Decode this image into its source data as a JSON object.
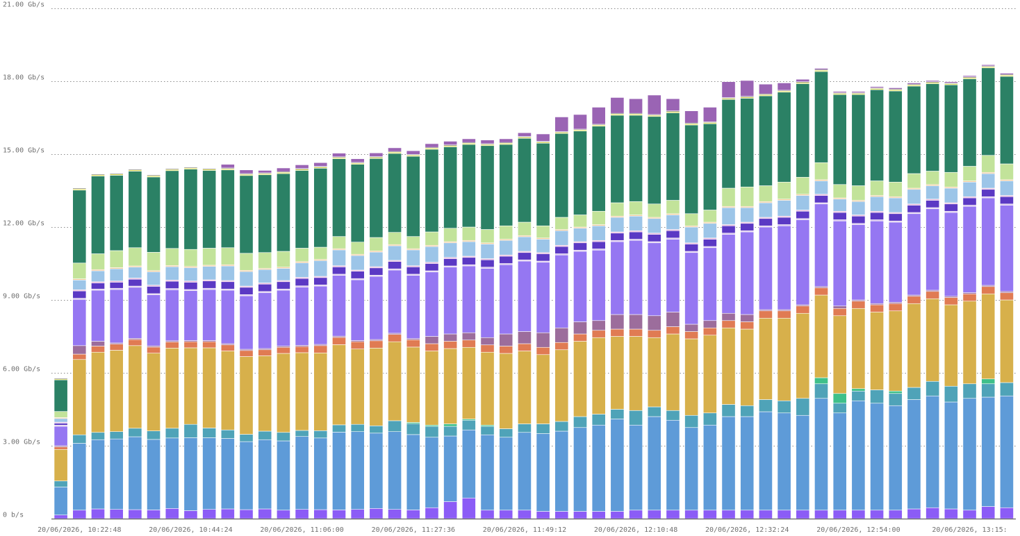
{
  "chart_data": {
    "type": "bar",
    "stacked": true,
    "unit": "Gb/s",
    "ylim": [
      0,
      21
    ],
    "y_ticks": [
      {
        "value": 0,
        "label": "0 b/s"
      },
      {
        "value": 3,
        "label": "3.00 Gb/s"
      },
      {
        "value": 6,
        "label": "6.00 Gb/s"
      },
      {
        "value": 9,
        "label": "9.00 Gb/s"
      },
      {
        "value": 12,
        "label": "12.00 Gb/s"
      },
      {
        "value": 15,
        "label": "15.00 Gb/s"
      },
      {
        "value": 18,
        "label": "18.00 Gb/s"
      },
      {
        "value": 21,
        "label": "21.00 Gb/s"
      }
    ],
    "x_tick_labels": [
      {
        "index": 1,
        "label": "20/06/2026, 10:22:48"
      },
      {
        "index": 7,
        "label": "20/06/2026, 10:44:24"
      },
      {
        "index": 13,
        "label": "20/06/2026, 11:06:00"
      },
      {
        "index": 19,
        "label": "20/06/2026, 11:27:36"
      },
      {
        "index": 25,
        "label": "20/06/2026, 11:49:12"
      },
      {
        "index": 31,
        "label": "20/06/2026, 12:10:48"
      },
      {
        "index": 37,
        "label": "20/06/2026, 12:32:24"
      },
      {
        "index": 43,
        "label": "20/06/2026, 12:54:00"
      },
      {
        "index": 49,
        "label": "20/06/2026, 13:15:"
      }
    ],
    "grid": true,
    "legend": "none",
    "series": [
      {
        "color": "#8b5cf6",
        "values": [
          0.15,
          0.35,
          0.4,
          0.38,
          0.37,
          0.36,
          0.42,
          0.33,
          0.38,
          0.4,
          0.37,
          0.4,
          0.35,
          0.38,
          0.37,
          0.36,
          0.38,
          0.42,
          0.38,
          0.36,
          0.45,
          0.7,
          0.85,
          0.35,
          0.35,
          0.35,
          0.3,
          0.3,
          0.3,
          0.3,
          0.3,
          0.35,
          0.35,
          0.35,
          0.35,
          0.35,
          0.35,
          0.35,
          0.35,
          0.35,
          0.35,
          0.35,
          0.35,
          0.35,
          0.35,
          0.35,
          0.4,
          0.45,
          0.4,
          0.35,
          0.5,
          0.45
        ]
      },
      {
        "color": "#5e9bd8",
        "values": [
          1.15,
          2.75,
          2.85,
          2.9,
          3.0,
          2.9,
          2.9,
          3.0,
          2.95,
          2.9,
          2.8,
          2.85,
          2.85,
          3.0,
          2.95,
          3.2,
          3.2,
          3.1,
          3.2,
          3.1,
          2.9,
          2.7,
          2.8,
          3.1,
          3.0,
          3.2,
          3.2,
          3.3,
          3.45,
          3.55,
          3.8,
          3.5,
          3.85,
          3.7,
          3.4,
          3.5,
          3.85,
          3.85,
          4.05,
          4.0,
          3.9,
          4.6,
          4.0,
          4.5,
          4.4,
          4.3,
          4.5,
          4.6,
          4.4,
          4.6,
          4.5,
          4.6
        ]
      },
      {
        "color": "#4fa3b8",
        "values": [
          0.25,
          0.35,
          0.3,
          0.3,
          0.35,
          0.35,
          0.4,
          0.55,
          0.4,
          0.35,
          0.3,
          0.35,
          0.35,
          0.25,
          0.3,
          0.3,
          0.3,
          0.3,
          0.45,
          0.45,
          0.45,
          0.4,
          0.4,
          0.35,
          0.35,
          0.35,
          0.4,
          0.4,
          0.45,
          0.45,
          0.4,
          0.6,
          0.4,
          0.4,
          0.5,
          0.5,
          0.5,
          0.45,
          0.5,
          0.5,
          0.7,
          0.6,
          0.4,
          0.4,
          0.55,
          0.5,
          0.5,
          0.6,
          0.65,
          0.6,
          0.55,
          0.55
        ]
      },
      {
        "color": "#3fc08a",
        "values": [
          0,
          0,
          0,
          0,
          0,
          0,
          0,
          0,
          0,
          0,
          0,
          0,
          0,
          0,
          0,
          0,
          0,
          0,
          0,
          0.05,
          0.05,
          0.1,
          0.05,
          0.05,
          0,
          0,
          0,
          0,
          0,
          0,
          0,
          0,
          0,
          0,
          0,
          0,
          0,
          0,
          0,
          0,
          0,
          0.25,
          0.4,
          0.1,
          0,
          0.1,
          0,
          0,
          0,
          0,
          0.2,
          0
        ]
      },
      {
        "color": "#d7b04b",
        "values": [
          1.3,
          3.1,
          3.3,
          3.35,
          3.4,
          3.2,
          3.3,
          3.15,
          3.3,
          3.25,
          3.2,
          3.1,
          3.25,
          3.2,
          3.2,
          3.3,
          3.1,
          3.2,
          3.25,
          3.1,
          3.05,
          3.1,
          2.95,
          3.0,
          3.1,
          3.0,
          2.85,
          2.95,
          3.1,
          3.15,
          3.0,
          3.05,
          2.85,
          3.15,
          3.15,
          3.2,
          3.15,
          3.15,
          3.35,
          3.4,
          3.5,
          3.4,
          3.2,
          3.3,
          3.2,
          3.3,
          3.45,
          3.4,
          3.35,
          3.4,
          3.5,
          3.4
        ]
      },
      {
        "color": "#e07b53",
        "values": [
          0.1,
          0.22,
          0.25,
          0.25,
          0.25,
          0.25,
          0.25,
          0.25,
          0.25,
          0.25,
          0.25,
          0.25,
          0.25,
          0.25,
          0.3,
          0.3,
          0.3,
          0.3,
          0.3,
          0.3,
          0.3,
          0.3,
          0.3,
          0.3,
          0.3,
          0.3,
          0.3,
          0.3,
          0.3,
          0.3,
          0.3,
          0.3,
          0.3,
          0.3,
          0.3,
          0.3,
          0.3,
          0.3,
          0.3,
          0.3,
          0.3,
          0.3,
          0.3,
          0.3,
          0.3,
          0.3,
          0.3,
          0.3,
          0.3,
          0.3,
          0.3,
          0.3
        ]
      },
      {
        "color": "#9c6d9c",
        "values": [
          0.05,
          0.35,
          0.2,
          0.05,
          0.05,
          0.05,
          0.05,
          0.05,
          0.05,
          0.05,
          0.05,
          0.05,
          0.05,
          0.05,
          0.05,
          0.05,
          0.05,
          0.05,
          0.05,
          0.05,
          0.3,
          0.3,
          0.3,
          0.3,
          0.5,
          0.5,
          0.6,
          0.6,
          0.5,
          0.4,
          0.6,
          0.6,
          0.6,
          0.6,
          0.3,
          0.3,
          0.3,
          0.3,
          0.05,
          0.05,
          0.05,
          0.05,
          0.1,
          0.05,
          0.05,
          0.05,
          0.05,
          0.05,
          0.05,
          0.05,
          0.05,
          0.05
        ]
      },
      {
        "color": "#9577f2",
        "values": [
          0.8,
          1.9,
          2.1,
          2.2,
          2.1,
          2.1,
          2.1,
          2.05,
          2.1,
          2.2,
          2.2,
          2.3,
          2.3,
          2.4,
          2.4,
          2.5,
          2.5,
          2.6,
          2.6,
          2.6,
          2.65,
          2.75,
          2.75,
          2.85,
          2.85,
          2.9,
          2.9,
          3.0,
          2.9,
          2.9,
          3.0,
          3.05,
          3.0,
          3.0,
          2.95,
          3.0,
          3.25,
          3.4,
          3.4,
          3.45,
          3.5,
          3.4,
          3.5,
          3.1,
          3.4,
          3.3,
          3.35,
          3.35,
          3.45,
          3.55,
          3.6,
          3.55
        ]
      },
      {
        "color": "#d9c2ea",
        "values": [
          0.05,
          0.05,
          0.05,
          0.05,
          0.05,
          0.05,
          0.05,
          0.05,
          0.05,
          0.05,
          0.05,
          0.05,
          0.05,
          0.05,
          0.05,
          0.05,
          0.05,
          0.05,
          0.05,
          0.05,
          0.05,
          0.05,
          0.05,
          0.05,
          0.05,
          0.05,
          0.05,
          0.05,
          0.05,
          0.05,
          0.05,
          0.05,
          0.05,
          0.05,
          0.05,
          0.05,
          0.05,
          0.05,
          0.05,
          0.05,
          0.05,
          0.05,
          0.05,
          0.05,
          0.05,
          0.05,
          0.05,
          0.05,
          0.05,
          0.05,
          0.05,
          0.05
        ]
      },
      {
        "color": "#5b39c4",
        "values": [
          0.08,
          0.3,
          0.25,
          0.25,
          0.28,
          0.3,
          0.3,
          0.3,
          0.3,
          0.3,
          0.3,
          0.3,
          0.3,
          0.3,
          0.3,
          0.3,
          0.3,
          0.3,
          0.3,
          0.3,
          0.3,
          0.3,
          0.3,
          0.3,
          0.3,
          0.3,
          0.3,
          0.3,
          0.3,
          0.3,
          0.3,
          0.3,
          0.3,
          0.3,
          0.3,
          0.3,
          0.3,
          0.3,
          0.3,
          0.3,
          0.3,
          0.3,
          0.3,
          0.3,
          0.3,
          0.3,
          0.3,
          0.3,
          0.3,
          0.3,
          0.3,
          0.3
        ]
      },
      {
        "color": "#e8b4d8",
        "values": [
          0.04,
          0.05,
          0.05,
          0.05,
          0.05,
          0.05,
          0.05,
          0.05,
          0.05,
          0.05,
          0.05,
          0.05,
          0.05,
          0.05,
          0.05,
          0.05,
          0.05,
          0.05,
          0.05,
          0.05,
          0.05,
          0.05,
          0.05,
          0.05,
          0.05,
          0.05,
          0.05,
          0.05,
          0.05,
          0.05,
          0.05,
          0.05,
          0.05,
          0.05,
          0.05,
          0.05,
          0.05,
          0.05,
          0.05,
          0.05,
          0.05,
          0.05,
          0.05,
          0.05,
          0.05,
          0.05,
          0.05,
          0.05,
          0.05,
          0.05,
          0.05,
          0.05
        ]
      },
      {
        "color": "#9cc5e8",
        "values": [
          0.15,
          0.4,
          0.45,
          0.5,
          0.45,
          0.55,
          0.55,
          0.55,
          0.55,
          0.6,
          0.6,
          0.55,
          0.5,
          0.6,
          0.65,
          0.65,
          0.6,
          0.6,
          0.6,
          0.65,
          0.65,
          0.6,
          0.6,
          0.6,
          0.6,
          0.6,
          0.55,
          0.6,
          0.55,
          0.6,
          0.6,
          0.6,
          0.6,
          0.6,
          0.65,
          0.6,
          0.7,
          0.6,
          0.6,
          0.65,
          0.6,
          0.55,
          0.5,
          0.55,
          0.6,
          0.6,
          0.6,
          0.55,
          0.6,
          0.6,
          0.6,
          0.6
        ]
      },
      {
        "color": "#f2c894",
        "values": [
          0.04,
          0.05,
          0.05,
          0.05,
          0.05,
          0.05,
          0.05,
          0.05,
          0.05,
          0.05,
          0.05,
          0.05,
          0.05,
          0.05,
          0.05,
          0.05,
          0.05,
          0.05,
          0.05,
          0.05,
          0.05,
          0.05,
          0.05,
          0.05,
          0.05,
          0.05,
          0.05,
          0.05,
          0.05,
          0.05,
          0.05,
          0.05,
          0.05,
          0.05,
          0.05,
          0.05,
          0.05,
          0.05,
          0.05,
          0.05,
          0.05,
          0.05,
          0.05,
          0.05,
          0.05,
          0.05,
          0.05,
          0.05,
          0.05,
          0.05,
          0.05,
          0.05
        ]
      },
      {
        "color": "#c2e39a",
        "values": [
          0.25,
          0.65,
          0.65,
          0.7,
          0.75,
          0.75,
          0.7,
          0.7,
          0.7,
          0.7,
          0.7,
          0.65,
          0.65,
          0.55,
          0.5,
          0.5,
          0.5,
          0.55,
          0.5,
          0.5,
          0.55,
          0.55,
          0.55,
          0.55,
          0.55,
          0.55,
          0.5,
          0.5,
          0.5,
          0.55,
          0.55,
          0.55,
          0.55,
          0.55,
          0.5,
          0.5,
          0.75,
          0.8,
          0.65,
          0.7,
          0.7,
          0.7,
          0.55,
          0.6,
          0.6,
          0.6,
          0.6,
          0.55,
          0.6,
          0.6,
          0.7,
          0.65
        ]
      },
      {
        "color": "#2b8165",
        "values": [
          1.3,
          3.0,
          3.2,
          3.1,
          3.15,
          3.1,
          3.2,
          3.3,
          3.2,
          3.2,
          3.2,
          3.2,
          3.2,
          3.2,
          3.25,
          3.2,
          3.2,
          3.25,
          3.25,
          3.3,
          3.4,
          3.35,
          3.4,
          3.45,
          3.35,
          3.45,
          3.4,
          3.45,
          3.45,
          3.5,
          3.6,
          3.55,
          3.6,
          3.6,
          3.65,
          3.55,
          3.65,
          3.65,
          3.7,
          3.7,
          3.85,
          3.75,
          3.7,
          3.75,
          3.75,
          3.75,
          3.6,
          3.6,
          3.6,
          3.6,
          3.6,
          3.6
        ]
      },
      {
        "color": "#e0e05a",
        "values": [
          0.04,
          0.05,
          0.05,
          0.05,
          0.05,
          0.05,
          0.05,
          0.05,
          0.05,
          0.05,
          0.05,
          0.05,
          0.05,
          0.05,
          0.05,
          0.05,
          0.05,
          0.05,
          0.05,
          0.05,
          0.05,
          0.05,
          0.05,
          0.05,
          0.05,
          0.05,
          0.05,
          0.05,
          0.05,
          0.05,
          0.05,
          0.05,
          0.05,
          0.05,
          0.05,
          0.05,
          0.05,
          0.05,
          0.05,
          0.05,
          0.05,
          0.05,
          0.05,
          0.05,
          0.05,
          0.05,
          0.05,
          0.05,
          0.05,
          0.05,
          0.05,
          0.05
        ]
      },
      {
        "color": "#444444",
        "values": [
          0.03,
          0.03,
          0.03,
          0.03,
          0.03,
          0.03,
          0.03,
          0.03,
          0.03,
          0.03,
          0.03,
          0.03,
          0.03,
          0.03,
          0.03,
          0.03,
          0.03,
          0.03,
          0.03,
          0.03,
          0.03,
          0.03,
          0.03,
          0.03,
          0.03,
          0.03,
          0.03,
          0.03,
          0.03,
          0.03,
          0.03,
          0.03,
          0.03,
          0.03,
          0.03,
          0.03,
          0.03,
          0.03,
          0.03,
          0.03,
          0.03,
          0.03,
          0.03,
          0.03,
          0.03,
          0.03,
          0.03,
          0.03,
          0.03,
          0.03,
          0.03,
          0.03
        ]
      },
      {
        "color": "#9a64b4",
        "values": [
          0,
          0,
          0,
          0,
          0,
          0,
          0,
          0,
          0,
          0.15,
          0.15,
          0.1,
          0.15,
          0.15,
          0.15,
          0.15,
          0.15,
          0.15,
          0.15,
          0.15,
          0.15,
          0.15,
          0.15,
          0.15,
          0.15,
          0.15,
          0.3,
          0.6,
          0.6,
          0.7,
          0.65,
          0.6,
          0.8,
          0.5,
          0.5,
          0.6,
          0.65,
          0.65,
          0.4,
          0.3,
          0.1,
          0.05,
          0.05,
          0.05,
          0.05,
          0.05,
          0.05,
          0.05,
          0.05,
          0.05,
          0.05,
          0.05
        ]
      }
    ]
  }
}
